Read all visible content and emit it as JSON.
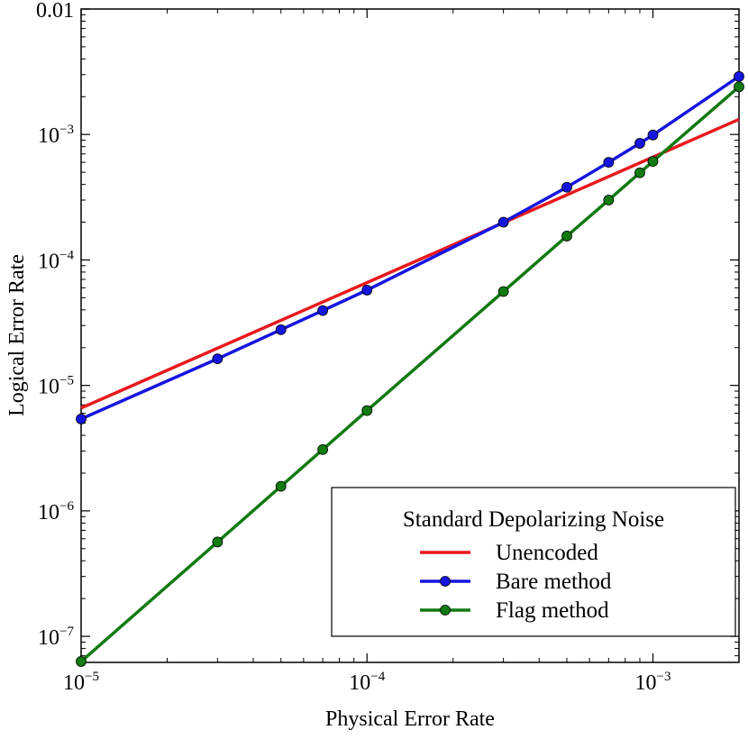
{
  "chart_data": {
    "type": "line",
    "xscale": "log",
    "yscale": "log",
    "xlabel": "Physical Error Rate",
    "ylabel": "Logical Error Rate",
    "xlim": [
      1e-05,
      0.002
    ],
    "ylim": [
      6.2e-08,
      0.01
    ],
    "xticks": [
      {
        "value": 1e-05,
        "base": "10",
        "exp": "−5"
      },
      {
        "value": 0.0001,
        "base": "10",
        "exp": "−4"
      },
      {
        "value": 0.001,
        "base": "10",
        "exp": "−3"
      }
    ],
    "yticks": [
      {
        "value": 1e-07,
        "base": "10",
        "exp": "−7"
      },
      {
        "value": 1e-06,
        "base": "10",
        "exp": "−6"
      },
      {
        "value": 1e-05,
        "base": "10",
        "exp": "−5"
      },
      {
        "value": 0.0001,
        "base": "10",
        "exp": "−4"
      },
      {
        "value": 0.001,
        "base": "10",
        "exp": "−3"
      },
      {
        "value": 0.01,
        "base": "0.01",
        "exp": ""
      }
    ],
    "legend": {
      "title": "Standard Depolarizing Noise",
      "location": "lower-right"
    },
    "series": [
      {
        "name": "Unencoded",
        "color": "#e8191e",
        "markers": false,
        "x": [
          1e-05,
          0.002
        ],
        "y": [
          6.6e-06,
          0.00132
        ]
      },
      {
        "name": "Bare method",
        "color": "#1515e0",
        "markers": true,
        "x": [
          1e-05,
          3e-05,
          5e-05,
          7e-05,
          0.0001,
          0.0003,
          0.0005,
          0.0007,
          0.0009,
          0.001,
          0.002
        ],
        "y": [
          5.4e-06,
          1.63e-05,
          2.78e-05,
          3.95e-05,
          5.75e-05,
          0.0002,
          0.00038,
          0.0006,
          0.00085,
          0.00099,
          0.0029
        ]
      },
      {
        "name": "Flag method",
        "color": "#117a11",
        "markers": true,
        "x": [
          1e-05,
          3e-05,
          5e-05,
          7e-05,
          0.0001,
          0.0003,
          0.0005,
          0.0007,
          0.0009,
          0.001,
          0.002
        ],
        "y": [
          6.3e-08,
          5.65e-07,
          1.57e-06,
          3.08e-06,
          6.3e-06,
          5.6e-05,
          0.000155,
          0.0003,
          0.000495,
          0.00061,
          0.0024
        ]
      }
    ]
  }
}
